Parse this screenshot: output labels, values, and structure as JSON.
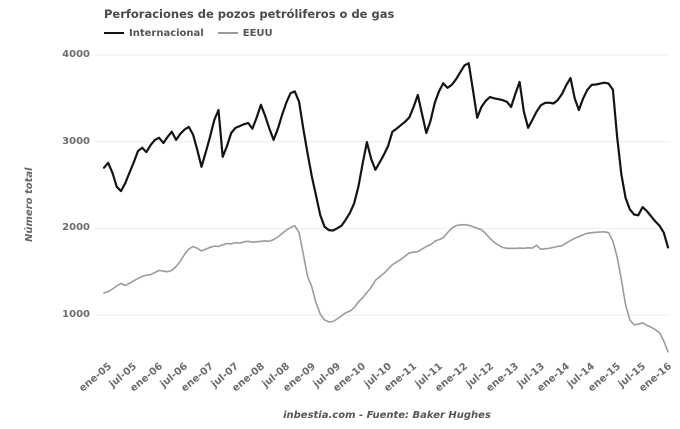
{
  "footer": {
    "text": "inbestia.com - Fuente: Baker Hughes"
  },
  "chart_data": {
    "type": "line",
    "title": "Perforaciones de pozos petróliferos o de gas",
    "ylabel": "Número total",
    "xlabel": "",
    "grid": "horizontal-only",
    "legend_position": "top-left",
    "ylim": [
      600,
      4100
    ],
    "y_ticks": [
      4000,
      3000,
      2000,
      1000
    ],
    "x_tick_labels": [
      "ene-05",
      "jul-05",
      "ene-06",
      "jul-06",
      "ene-07",
      "jul-07",
      "ene-08",
      "jul-08",
      "ene-09",
      "jul-09",
      "ene-10",
      "jul-10",
      "ene-11",
      "jul-11",
      "ene-12",
      "jul-12",
      "ene-13",
      "jul-13",
      "ene-14",
      "jul-14",
      "ene-15",
      "jul-15",
      "ene-16"
    ],
    "x_start": "ene-05",
    "x_interval": "monthly",
    "series": [
      {
        "name": "Internacional",
        "color": "#141414",
        "values": [
          2700,
          2755,
          2640,
          2480,
          2430,
          2520,
          2640,
          2760,
          2890,
          2930,
          2880,
          2960,
          3020,
          3045,
          2985,
          3055,
          3115,
          3020,
          3090,
          3140,
          3170,
          3080,
          2905,
          2710,
          2880,
          3055,
          3250,
          3365,
          2825,
          2950,
          3100,
          3160,
          3180,
          3200,
          3215,
          3150,
          3280,
          3425,
          3300,
          3150,
          3020,
          3150,
          3310,
          3450,
          3560,
          3580,
          3460,
          3150,
          2870,
          2600,
          2380,
          2150,
          2020,
          1980,
          1975,
          2000,
          2030,
          2100,
          2180,
          2290,
          2480,
          2750,
          2995,
          2800,
          2675,
          2760,
          2850,
          2950,
          3115,
          3150,
          3190,
          3230,
          3280,
          3400,
          3540,
          3320,
          3100,
          3240,
          3450,
          3580,
          3675,
          3620,
          3655,
          3720,
          3800,
          3880,
          3905,
          3600,
          3275,
          3400,
          3470,
          3515,
          3500,
          3490,
          3480,
          3460,
          3400,
          3550,
          3690,
          3350,
          3160,
          3250,
          3345,
          3420,
          3447,
          3450,
          3440,
          3480,
          3550,
          3650,
          3735,
          3500,
          3365,
          3500,
          3600,
          3655,
          3660,
          3670,
          3680,
          3670,
          3600,
          3060,
          2620,
          2350,
          2220,
          2160,
          2150,
          2245,
          2200,
          2140,
          2080,
          2030,
          1950,
          1780
        ]
      },
      {
        "name": "EEUU",
        "color": "#9c9c9c",
        "values": [
          1255,
          1270,
          1300,
          1335,
          1365,
          1340,
          1365,
          1395,
          1420,
          1445,
          1460,
          1465,
          1490,
          1515,
          1505,
          1500,
          1515,
          1560,
          1620,
          1700,
          1760,
          1790,
          1770,
          1740,
          1760,
          1780,
          1795,
          1790,
          1810,
          1825,
          1820,
          1835,
          1830,
          1845,
          1850,
          1840,
          1845,
          1850,
          1855,
          1850,
          1870,
          1900,
          1940,
          1980,
          2010,
          2030,
          1950,
          1700,
          1450,
          1325,
          1140,
          1010,
          945,
          920,
          925,
          955,
          990,
          1025,
          1045,
          1085,
          1150,
          1200,
          1260,
          1320,
          1400,
          1440,
          1480,
          1530,
          1580,
          1610,
          1640,
          1680,
          1717,
          1725,
          1730,
          1760,
          1790,
          1810,
          1850,
          1870,
          1890,
          1950,
          2000,
          2030,
          2040,
          2042,
          2035,
          2020,
          2000,
          1985,
          1940,
          1885,
          1840,
          1805,
          1780,
          1770,
          1770,
          1768,
          1772,
          1770,
          1775,
          1772,
          1804,
          1758,
          1765,
          1770,
          1780,
          1792,
          1800,
          1830,
          1860,
          1885,
          1905,
          1925,
          1943,
          1950,
          1954,
          1958,
          1960,
          1950,
          1850,
          1671,
          1406,
          1117,
          944,
          886,
          895,
          910,
          880,
          860,
          830,
          795,
          700,
          575
        ]
      }
    ]
  }
}
